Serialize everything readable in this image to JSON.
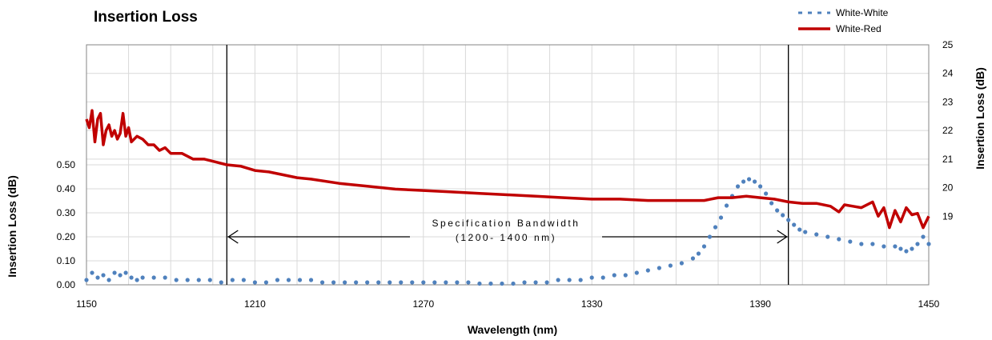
{
  "chart_data": {
    "type": "line",
    "title": "Insertion Loss",
    "xlabel": "Wavelength (nm)",
    "ylabel_left": "Insertion Loss (dB)",
    "ylabel_right": "Insertion Loss (dB)",
    "xlim": [
      1150,
      1450
    ],
    "x_ticks": [
      "1150",
      "1210",
      "1270",
      "1330",
      "1390",
      "1450"
    ],
    "x_tick_values": [
      1150,
      1210,
      1270,
      1330,
      1390,
      1450
    ],
    "ylim_left": [
      0,
      1.0
    ],
    "y_left_ticks": [
      "0.00",
      "0.10",
      "0.20",
      "0.30",
      "0.40",
      "0.50"
    ],
    "y_left_tick_values": [
      0,
      0.1,
      0.2,
      0.3,
      0.4,
      0.5
    ],
    "ylim_right": [
      16.6,
      25
    ],
    "y_right_ticks": [
      "19",
      "20",
      "21",
      "22",
      "23",
      "24",
      "25"
    ],
    "y_right_tick_values": [
      19,
      20,
      21,
      22,
      23,
      24,
      25
    ],
    "grid": true,
    "legend_position": "top-right",
    "spec_lines": [
      1200,
      1400
    ],
    "annotation": {
      "line1": "Specification Bandwidth",
      "line2": "(1200- 1400 nm)"
    },
    "series": [
      {
        "name": "White-White",
        "axis": "left",
        "style": "dots",
        "color": "#4f81bd",
        "x": [
          1150,
          1152,
          1154,
          1156,
          1158,
          1160,
          1162,
          1164,
          1166,
          1168,
          1170,
          1174,
          1178,
          1182,
          1186,
          1190,
          1194,
          1198,
          1202,
          1206,
          1210,
          1214,
          1218,
          1222,
          1226,
          1230,
          1234,
          1238,
          1242,
          1246,
          1250,
          1254,
          1258,
          1262,
          1266,
          1270,
          1274,
          1278,
          1282,
          1286,
          1290,
          1294,
          1298,
          1302,
          1306,
          1310,
          1314,
          1318,
          1322,
          1326,
          1330,
          1334,
          1338,
          1342,
          1346,
          1350,
          1354,
          1358,
          1362,
          1366,
          1368,
          1370,
          1372,
          1374,
          1376,
          1378,
          1380,
          1382,
          1384,
          1386,
          1388,
          1390,
          1392,
          1394,
          1396,
          1398,
          1400,
          1402,
          1404,
          1406,
          1410,
          1414,
          1418,
          1422,
          1426,
          1430,
          1434,
          1438,
          1440,
          1442,
          1444,
          1446,
          1448,
          1450
        ],
        "y": [
          0.02,
          0.05,
          0.03,
          0.04,
          0.02,
          0.05,
          0.04,
          0.05,
          0.03,
          0.02,
          0.03,
          0.03,
          0.03,
          0.02,
          0.02,
          0.02,
          0.02,
          0.01,
          0.02,
          0.02,
          0.01,
          0.01,
          0.02,
          0.02,
          0.02,
          0.02,
          0.01,
          0.01,
          0.01,
          0.01,
          0.01,
          0.01,
          0.01,
          0.01,
          0.01,
          0.01,
          0.01,
          0.01,
          0.01,
          0.01,
          0.005,
          0.005,
          0.005,
          0.005,
          0.01,
          0.01,
          0.01,
          0.02,
          0.02,
          0.02,
          0.03,
          0.03,
          0.04,
          0.04,
          0.05,
          0.06,
          0.07,
          0.08,
          0.09,
          0.11,
          0.13,
          0.16,
          0.2,
          0.24,
          0.28,
          0.33,
          0.37,
          0.41,
          0.43,
          0.44,
          0.43,
          0.41,
          0.38,
          0.34,
          0.31,
          0.29,
          0.27,
          0.25,
          0.23,
          0.22,
          0.21,
          0.2,
          0.19,
          0.18,
          0.17,
          0.17,
          0.16,
          0.16,
          0.15,
          0.14,
          0.15,
          0.17,
          0.2,
          0.17
        ]
      },
      {
        "name": "White-Red",
        "axis": "right",
        "style": "line",
        "color": "#c00000",
        "x": [
          1150,
          1151,
          1152,
          1153,
          1154,
          1155,
          1156,
          1157,
          1158,
          1159,
          1160,
          1161,
          1162,
          1163,
          1164,
          1165,
          1166,
          1168,
          1170,
          1172,
          1174,
          1176,
          1178,
          1180,
          1184,
          1188,
          1192,
          1196,
          1200,
          1205,
          1210,
          1215,
          1220,
          1225,
          1230,
          1240,
          1250,
          1260,
          1270,
          1280,
          1290,
          1300,
          1310,
          1320,
          1330,
          1340,
          1350,
          1360,
          1370,
          1375,
          1380,
          1385,
          1390,
          1395,
          1400,
          1405,
          1410,
          1415,
          1418,
          1420,
          1423,
          1426,
          1430,
          1432,
          1434,
          1436,
          1438,
          1440,
          1442,
          1444,
          1446,
          1448,
          1450
        ],
        "y": [
          22.4,
          22.1,
          22.7,
          21.6,
          22.4,
          22.6,
          21.5,
          22.0,
          22.2,
          21.8,
          22.0,
          21.7,
          21.9,
          22.6,
          21.8,
          22.1,
          21.6,
          21.8,
          21.7,
          21.5,
          21.5,
          21.3,
          21.4,
          21.2,
          21.2,
          21.0,
          21.0,
          20.9,
          20.8,
          20.75,
          20.6,
          20.55,
          20.45,
          20.35,
          20.3,
          20.15,
          20.05,
          19.95,
          19.9,
          19.85,
          19.8,
          19.75,
          19.7,
          19.65,
          19.6,
          19.6,
          19.55,
          19.55,
          19.55,
          19.65,
          19.65,
          19.7,
          19.65,
          19.6,
          19.5,
          19.45,
          19.45,
          19.35,
          19.15,
          19.4,
          19.35,
          19.3,
          19.5,
          19.0,
          19.3,
          18.6,
          19.2,
          18.8,
          19.3,
          19.05,
          19.1,
          18.6,
          19.0
        ]
      }
    ]
  }
}
